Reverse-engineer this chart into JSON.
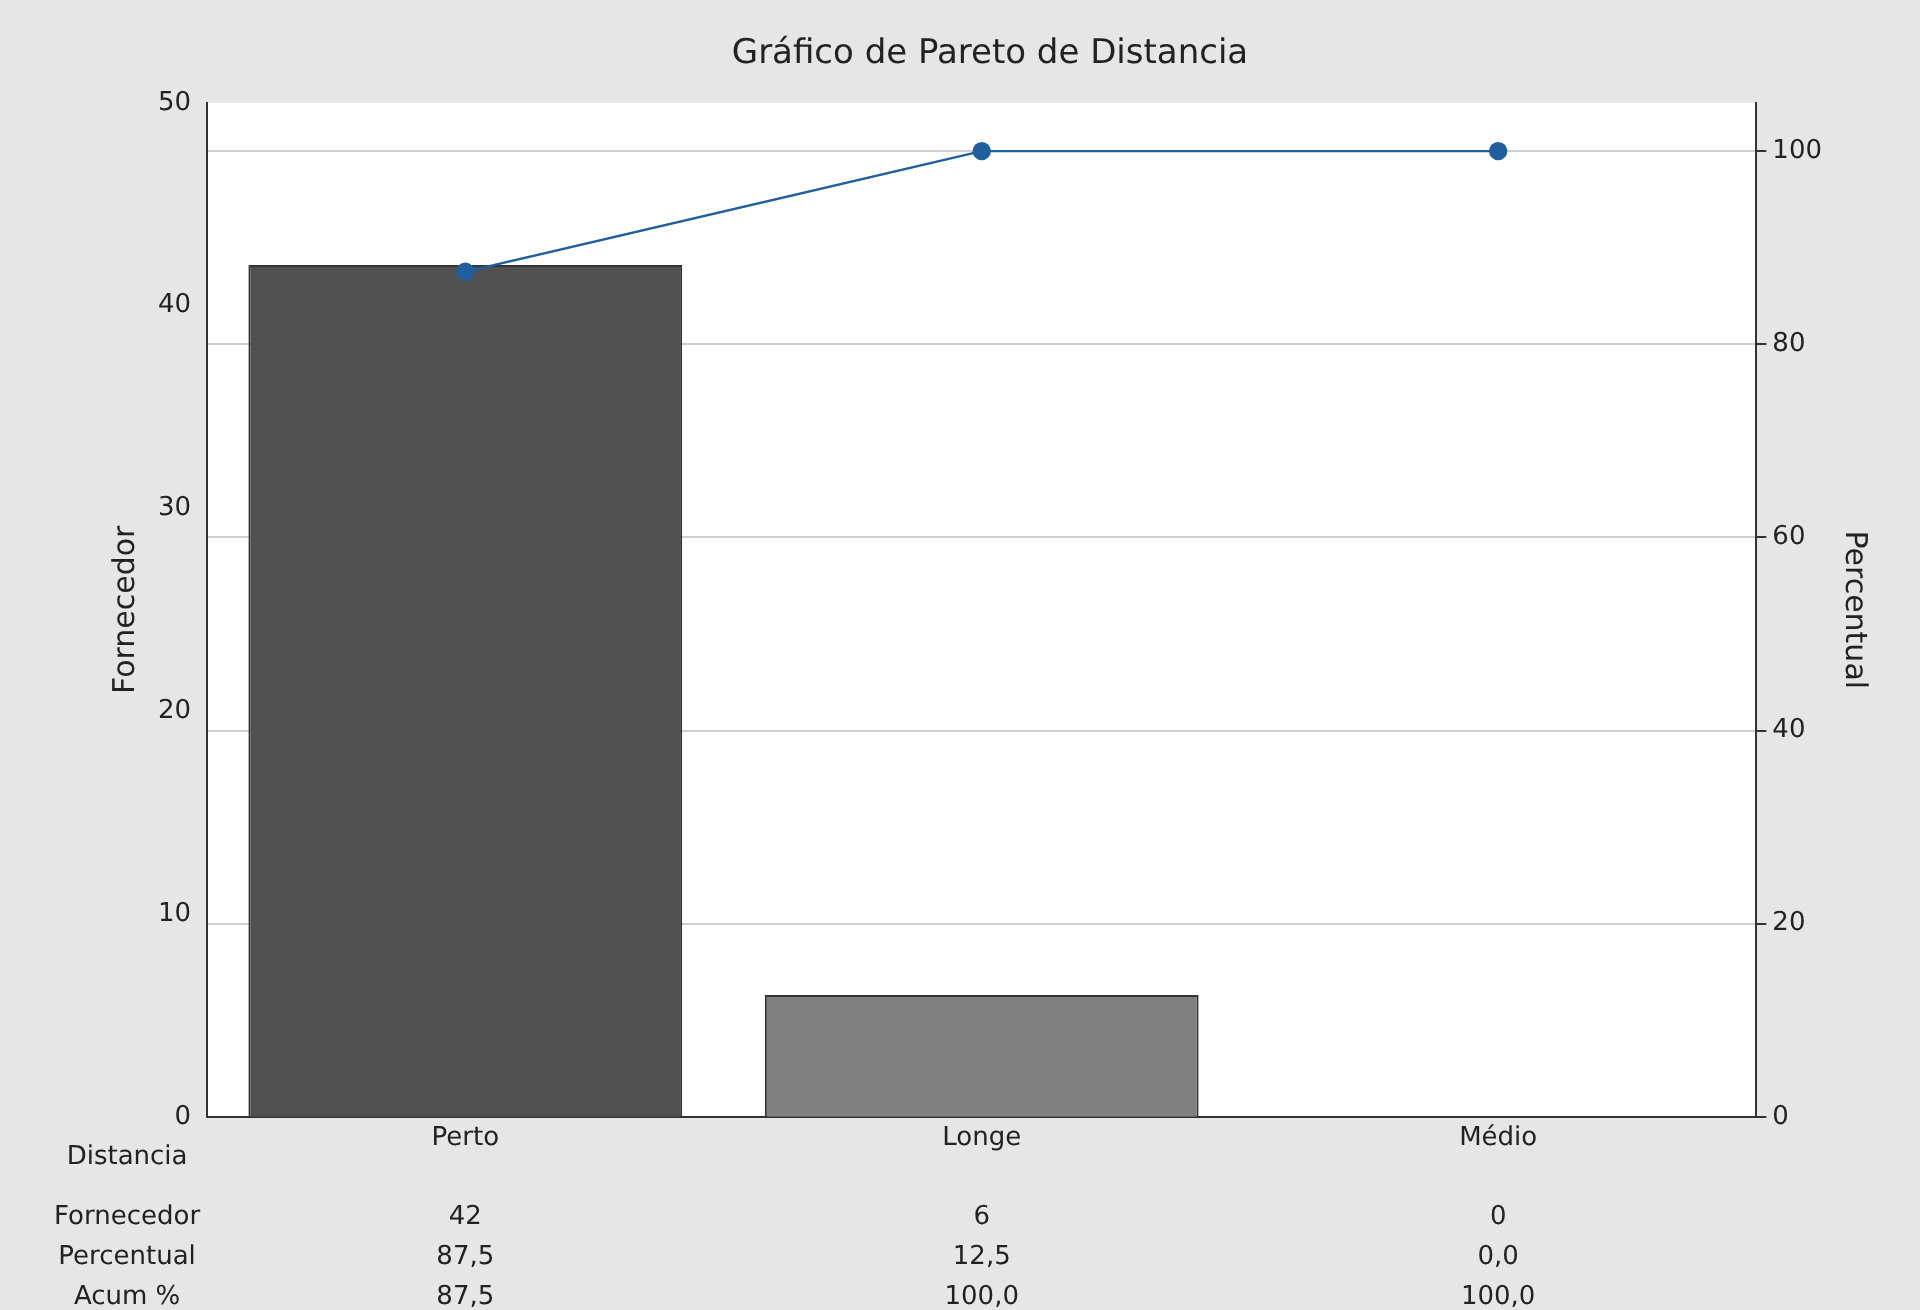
{
  "chart_data": {
    "type": "bar",
    "title": "Gráfico de Pareto de Distancia",
    "xlabel": "Distancia",
    "ylabel": "Fornecedor",
    "y2label": "Percentual",
    "categories": [
      "Perto",
      "Longe",
      "Médio"
    ],
    "series": [
      {
        "colors": [
          "#505050",
          "#808080",
          "#a6a6a6"
        ],
        "values": [
          42,
          6,
          0
        ],
        "value_labels": [
          "42",
          "6",
          "0"
        ]
      },
      {
        "type": "line",
        "axis": "y2",
        "color": "#1f5f9e",
        "values": [
          87.5,
          100,
          100
        ],
        "value_labels": [
          "87,5",
          "100,0",
          "100,0"
        ]
      }
    ],
    "annotations": [
      "Fornecedor",
      "Percentual",
      "87,5",
      "12,5",
      "0,0",
      "Acum %"
    ],
    "ylim": [
      0,
      50
    ],
    "yticks": [
      0,
      10,
      20,
      30,
      40,
      50
    ],
    "y2lim": [
      0,
      105
    ],
    "y2ticks": [
      0,
      20,
      40,
      60,
      80,
      100
    ],
    "grid": "y",
    "legend": false,
    "marker": "circle",
    "line_style": "solid"
  }
}
